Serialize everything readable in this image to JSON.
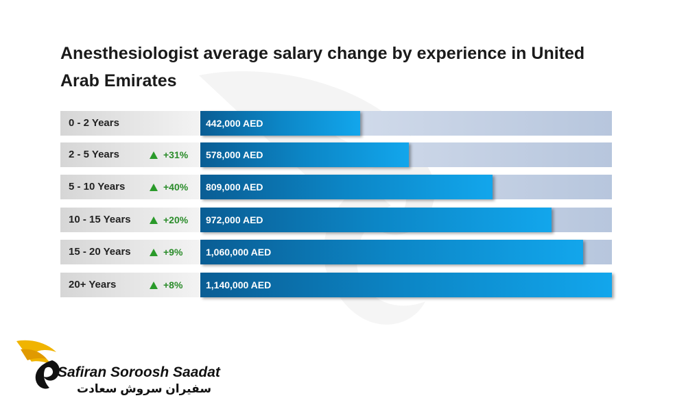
{
  "chart_data": {
    "type": "bar",
    "title": "Anesthesiologist average salary change by experience in United Arab Emirates",
    "categories": [
      "0 - 2 Years",
      "2 - 5 Years",
      "5 - 10 Years",
      "10 - 15 Years",
      "15 - 20 Years",
      "20+ Years"
    ],
    "values": [
      442000,
      578000,
      809000,
      972000,
      1060000,
      1140000
    ],
    "value_labels": [
      "442,000 AED",
      "578,000 AED",
      "809,000 AED",
      "972,000 AED",
      "1,060,000 AED",
      "1,140,000 AED"
    ],
    "changes": [
      "",
      "+31%",
      "+40%",
      "+20%",
      "+9%",
      "+8%"
    ],
    "unit": "AED",
    "orientation": "horizontal",
    "xlim": [
      0,
      1140000
    ],
    "grid": false,
    "colors": {
      "bar_dark": "#0a5d94",
      "bar_light": "#12a6ec",
      "track": "#b7c6dd",
      "label_bg": "#d6d6d6",
      "increase": "#2a9a2a"
    },
    "increase_icon": "triangle-up-icon"
  },
  "brand": {
    "name_en": "Safiran Soroosh Saadat",
    "name_fa": "سفیران سروش سعادت",
    "logo_icon": "wing-logo-icon",
    "colors": {
      "gold": "#f0b400",
      "black": "#111111"
    }
  }
}
